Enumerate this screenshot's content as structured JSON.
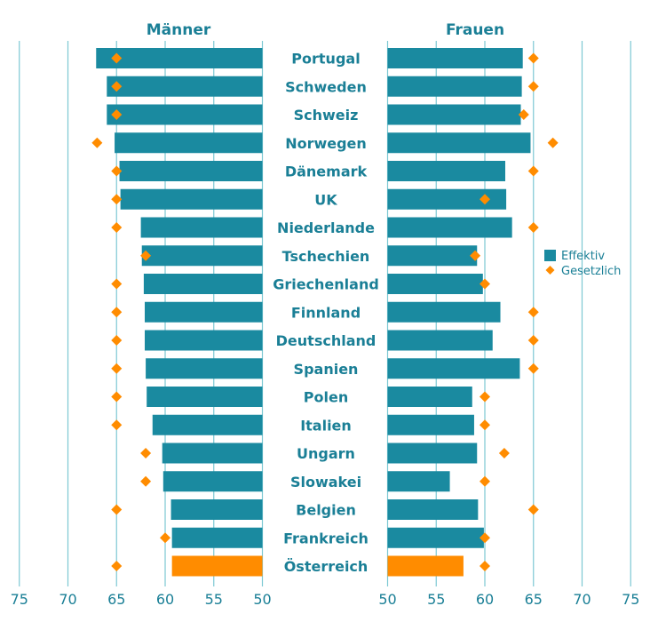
{
  "chart_data": {
    "type": "bar",
    "panels": [
      {
        "title": "Männer",
        "direction": "left"
      },
      {
        "title": "Frauen",
        "direction": "right"
      }
    ],
    "categories": [
      "Portugal",
      "Schweden",
      "Schweiz",
      "Norwegen",
      "Dänemark",
      "UK",
      "Niederlande",
      "Tschechien",
      "Griechenland",
      "Finnland",
      "Deutschland",
      "Spanien",
      "Polen",
      "Italien",
      "Ungarn",
      "Slowakei",
      "Belgien",
      "Frankreich",
      "Österreich"
    ],
    "series": [
      {
        "name": "Effektiv",
        "kind": "bar",
        "men": [
          67.1,
          66.0,
          66.0,
          65.2,
          64.7,
          64.6,
          62.5,
          62.4,
          62.2,
          62.1,
          62.1,
          62.0,
          61.9,
          61.3,
          60.3,
          60.2,
          59.4,
          59.3,
          59.3
        ],
        "women": [
          63.9,
          63.8,
          63.7,
          64.7,
          62.1,
          62.2,
          62.8,
          59.2,
          59.8,
          61.6,
          60.8,
          63.6,
          58.7,
          58.9,
          59.2,
          56.4,
          59.3,
          59.9,
          57.8
        ]
      },
      {
        "name": "Gesetzlich",
        "kind": "marker",
        "men": [
          65,
          65,
          65,
          67,
          65,
          65,
          65,
          62,
          65,
          65,
          65,
          65,
          65,
          65,
          62,
          62,
          65,
          60,
          65
        ],
        "women": [
          65,
          65,
          64,
          67,
          65,
          60,
          65,
          59,
          60,
          65,
          65,
          65,
          60,
          60,
          62,
          60,
          65,
          60,
          60
        ]
      }
    ],
    "highlight_category": "Österreich",
    "ticks_men": [
      "75",
      "70",
      "65",
      "60",
      "55",
      "50"
    ],
    "ticks_women": [
      "50",
      "55",
      "60",
      "65",
      "70",
      "75"
    ],
    "xlim": [
      50,
      75
    ],
    "grid": "vertical",
    "legend": {
      "position": "right",
      "items": [
        "Effektiv",
        "Gesetzlich"
      ]
    },
    "colors": {
      "bar": "#1a8aa0",
      "highlight": "#ff8c00",
      "marker": "#ff8c00",
      "grid": "#7cc8d3",
      "text": "#1a7f96"
    }
  }
}
